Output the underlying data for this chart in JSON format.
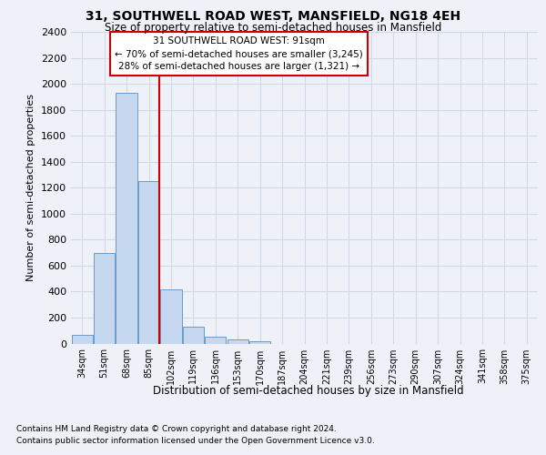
{
  "title1": "31, SOUTHWELL ROAD WEST, MANSFIELD, NG18 4EH",
  "title2": "Size of property relative to semi-detached houses in Mansfield",
  "xlabel": "Distribution of semi-detached houses by size in Mansfield",
  "ylabel": "Number of semi-detached properties",
  "categories": [
    "34sqm",
    "51sqm",
    "68sqm",
    "85sqm",
    "102sqm",
    "119sqm",
    "136sqm",
    "153sqm",
    "170sqm",
    "187sqm",
    "204sqm",
    "221sqm",
    "239sqm",
    "256sqm",
    "273sqm",
    "290sqm",
    "307sqm",
    "324sqm",
    "341sqm",
    "358sqm",
    "375sqm"
  ],
  "values": [
    65,
    700,
    1930,
    1250,
    420,
    130,
    50,
    35,
    20,
    0,
    0,
    0,
    0,
    0,
    0,
    0,
    0,
    0,
    0,
    0,
    0
  ],
  "bar_color": "#c5d8f0",
  "bar_edge_color": "#5a8fc0",
  "vline_color": "#cc0000",
  "annotation_text": "31 SOUTHWELL ROAD WEST: 91sqm\n← 70% of semi-detached houses are smaller (3,245)\n28% of semi-detached houses are larger (1,321) →",
  "annotation_box_color": "#cc0000",
  "ylim": [
    0,
    2400
  ],
  "yticks": [
    0,
    200,
    400,
    600,
    800,
    1000,
    1200,
    1400,
    1600,
    1800,
    2000,
    2200,
    2400
  ],
  "grid_color": "#d0d8e8",
  "footnote1": "Contains HM Land Registry data © Crown copyright and database right 2024.",
  "footnote2": "Contains public sector information licensed under the Open Government Licence v3.0.",
  "bg_color": "#eef2f8",
  "plot_bg_color": "#eef2f8"
}
